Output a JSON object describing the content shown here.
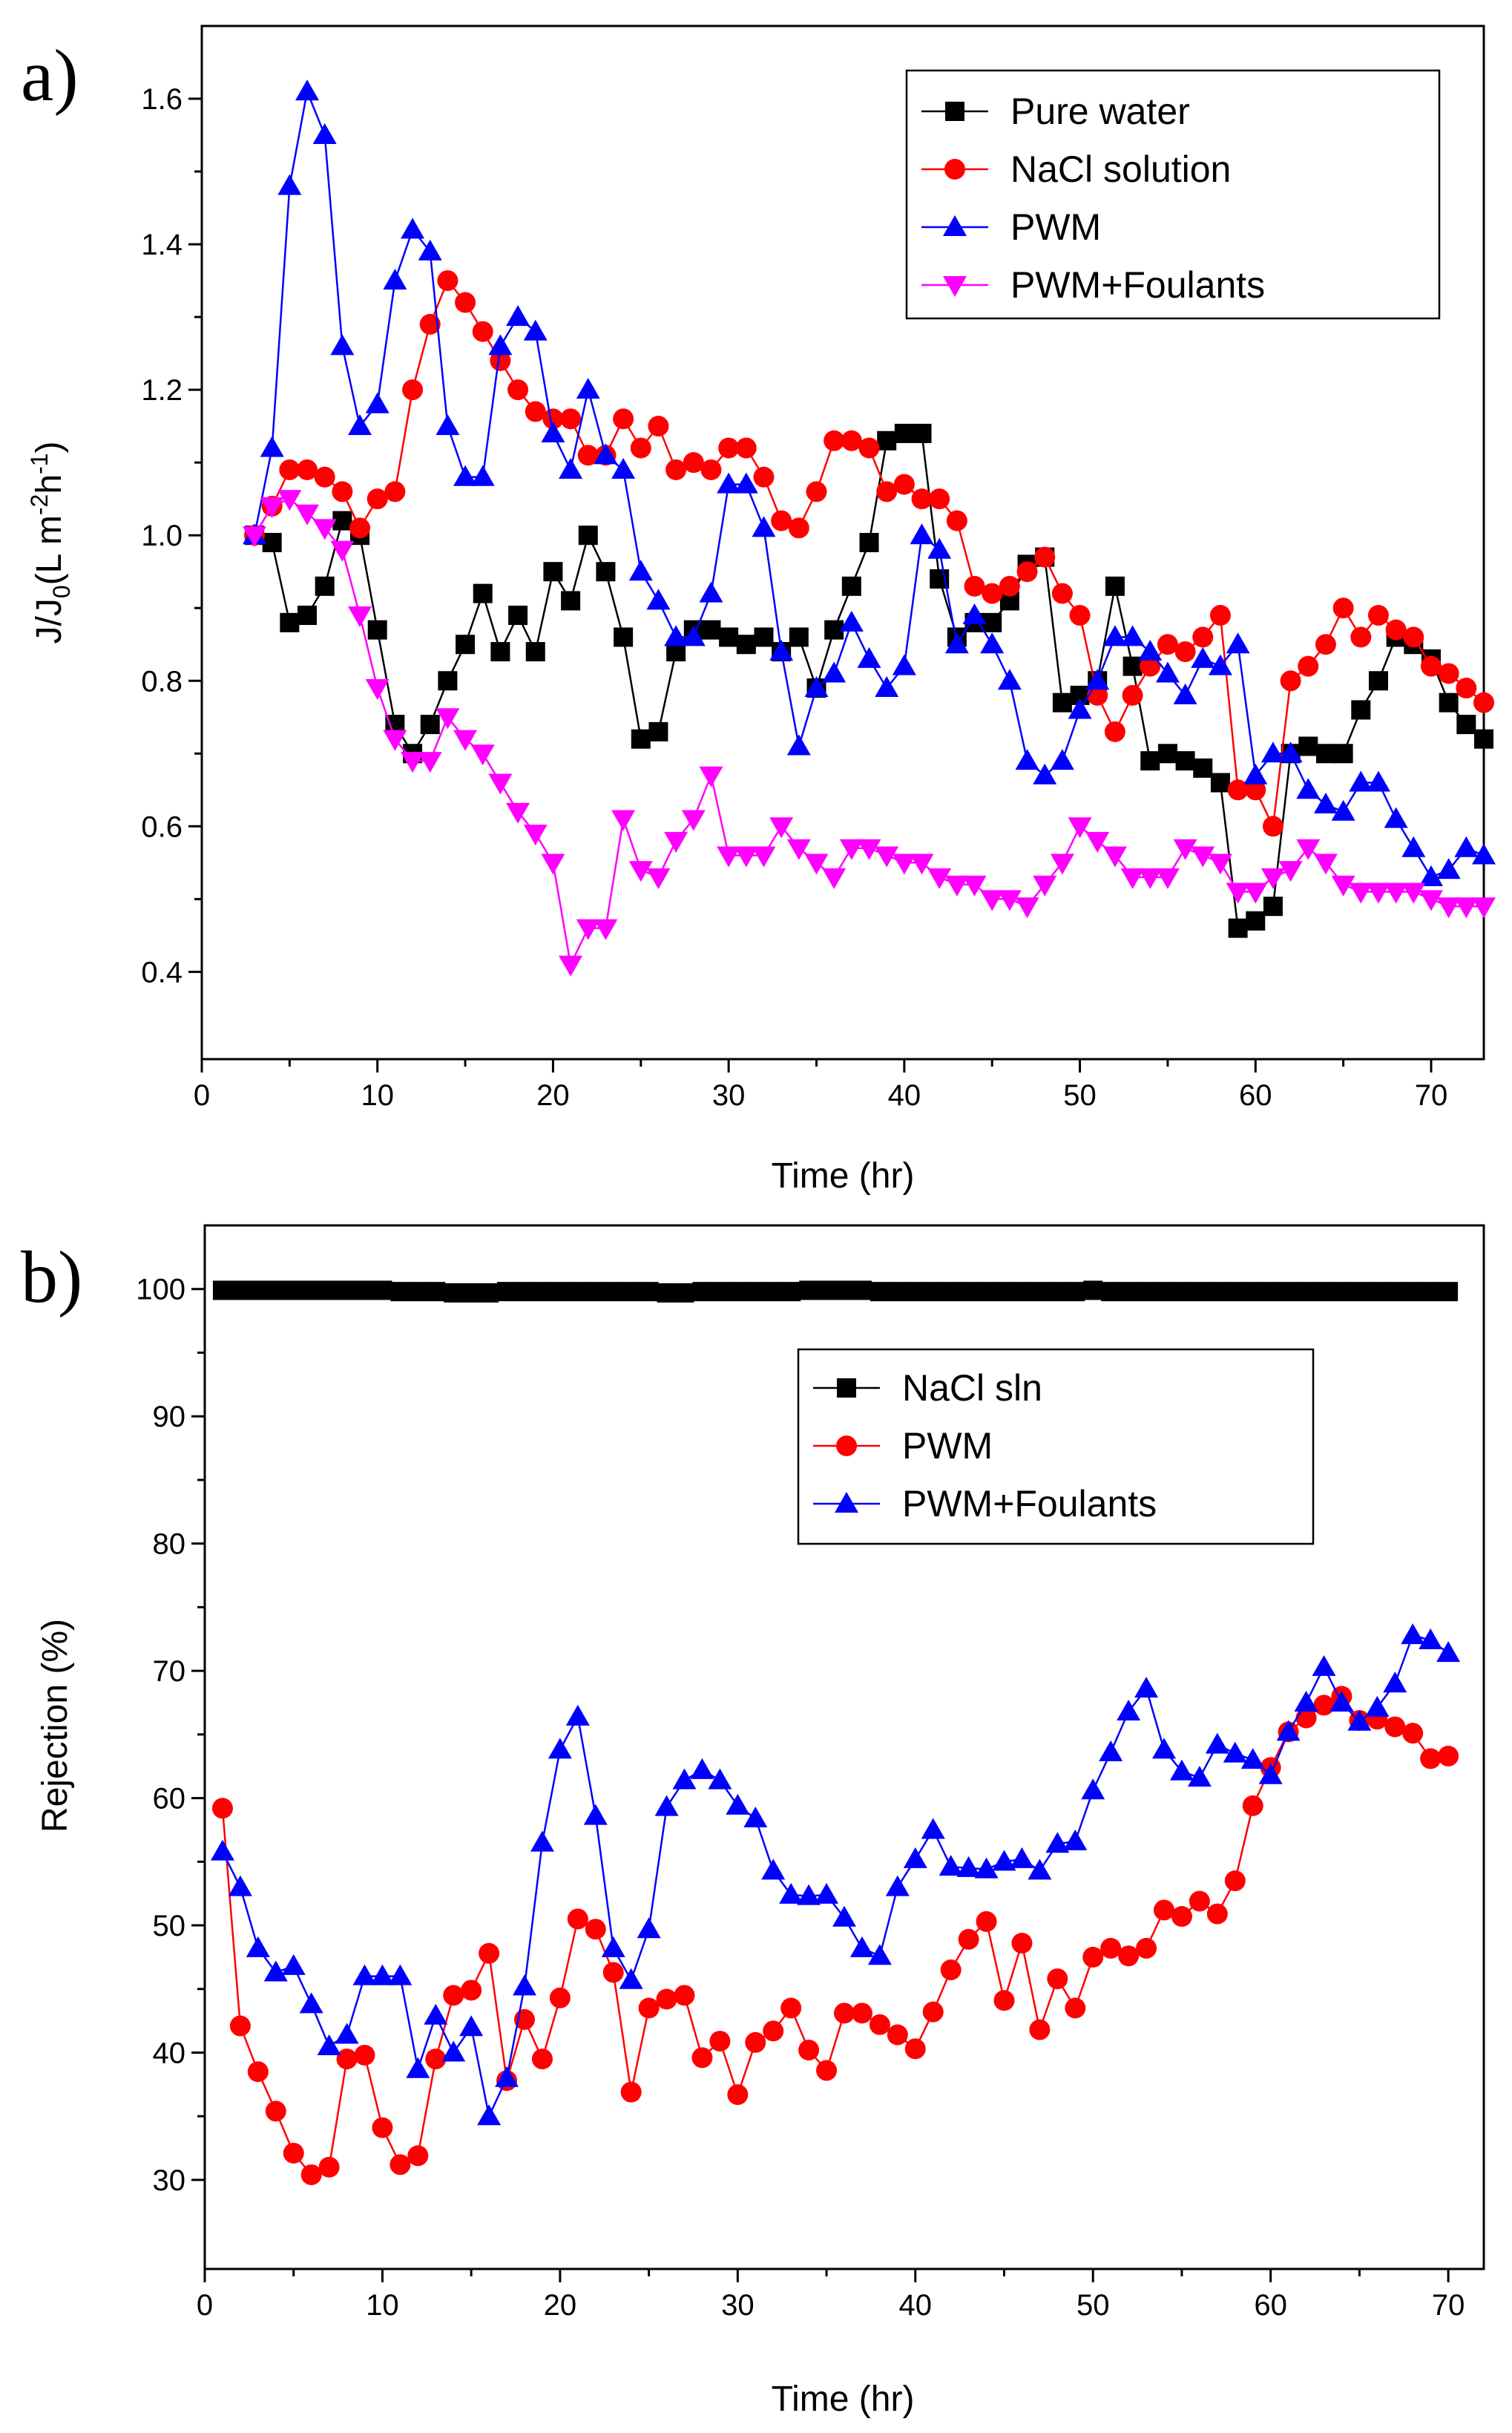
{
  "chart_data": [
    {
      "panel": "a)",
      "type": "line",
      "xlabel": "Time (hr)",
      "ylabel": {
        "main": "J/J",
        "sub": "0",
        "unit_open": "(L m",
        "exp1": "-2",
        "unit_mid": "h",
        "exp2": "-1",
        "unit_close": ")"
      },
      "xlim": [
        0,
        73
      ],
      "ylim": [
        0.28,
        1.7
      ],
      "xticks": [
        0,
        10,
        20,
        30,
        40,
        50,
        60,
        70
      ],
      "yticks": [
        0.4,
        0.6,
        0.8,
        1.0,
        1.2,
        1.4,
        1.6
      ],
      "ytick_labels": [
        "0.4",
        "0.6",
        "0.8",
        "1.0",
        "1.2",
        "1.4",
        "1.6"
      ],
      "legend_position": "top-right",
      "series": [
        {
          "name": "Pure water",
          "color": "#000000",
          "marker": "square",
          "x": [
            3,
            4,
            5,
            6,
            7,
            8,
            9,
            10,
            11,
            12,
            13,
            14,
            15,
            16,
            17,
            18,
            19,
            20,
            21,
            22,
            23,
            24,
            25,
            26,
            27,
            28,
            29,
            30,
            31,
            32,
            33,
            34,
            35,
            36,
            37,
            38,
            39,
            40,
            41,
            42,
            43,
            44,
            45,
            46,
            47,
            48,
            49,
            50,
            51,
            52,
            53,
            54,
            55,
            56,
            57,
            58,
            59,
            60,
            61,
            62,
            63,
            64,
            65,
            66,
            67,
            68,
            69,
            70,
            71,
            72,
            73
          ],
          "values": [
            1.0,
            0.99,
            0.88,
            0.89,
            0.93,
            1.02,
            1.0,
            0.87,
            0.74,
            0.7,
            0.74,
            0.8,
            0.85,
            0.92,
            0.84,
            0.89,
            0.84,
            0.95,
            0.91,
            1.0,
            0.95,
            0.86,
            0.72,
            0.73,
            0.84,
            0.87,
            0.87,
            0.86,
            0.85,
            0.86,
            0.84,
            0.86,
            0.79,
            0.87,
            0.93,
            0.99,
            1.13,
            1.14,
            1.14,
            0.94,
            0.86,
            0.88,
            0.88,
            0.91,
            0.96,
            0.97,
            0.77,
            0.78,
            0.8,
            0.93,
            0.82,
            0.69,
            0.7,
            0.69,
            0.68,
            0.66,
            0.46,
            0.47,
            0.49,
            0.7,
            0.71,
            0.7,
            0.7,
            0.76,
            0.8,
            0.86,
            0.85,
            0.83,
            0.77,
            0.74,
            0.72
          ]
        },
        {
          "name": "NaCl solution",
          "color": "#ff0000",
          "marker": "circle",
          "x": [
            3,
            4,
            5,
            6,
            7,
            8,
            9,
            10,
            11,
            12,
            13,
            14,
            15,
            16,
            17,
            18,
            19,
            20,
            21,
            22,
            23,
            24,
            25,
            26,
            27,
            28,
            29,
            30,
            31,
            32,
            33,
            34,
            35,
            36,
            37,
            38,
            39,
            40,
            41,
            42,
            43,
            44,
            45,
            46,
            47,
            48,
            49,
            50,
            51,
            52,
            53,
            54,
            55,
            56,
            57,
            58,
            59,
            60,
            61,
            62,
            63,
            64,
            65,
            66,
            67,
            68,
            69,
            70,
            71,
            72,
            73
          ],
          "values": [
            1.0,
            1.04,
            1.09,
            1.09,
            1.08,
            1.06,
            1.01,
            1.05,
            1.06,
            1.2,
            1.29,
            1.35,
            1.32,
            1.28,
            1.24,
            1.2,
            1.17,
            1.16,
            1.16,
            1.11,
            1.11,
            1.16,
            1.12,
            1.15,
            1.09,
            1.1,
            1.09,
            1.12,
            1.12,
            1.08,
            1.02,
            1.01,
            1.06,
            1.13,
            1.13,
            1.12,
            1.06,
            1.07,
            1.05,
            1.05,
            1.02,
            0.93,
            0.92,
            0.93,
            0.95,
            0.97,
            0.92,
            0.89,
            0.78,
            0.73,
            0.78,
            0.82,
            0.85,
            0.84,
            0.86,
            0.89,
            0.65,
            0.65,
            0.6,
            0.8,
            0.82,
            0.85,
            0.9,
            0.86,
            0.89,
            0.87,
            0.86,
            0.82,
            0.81,
            0.79,
            0.77
          ]
        },
        {
          "name": "PWM",
          "color": "#0000ff",
          "marker": "triangle-up",
          "x": [
            3,
            4,
            5,
            6,
            7,
            8,
            9,
            10,
            11,
            12,
            13,
            14,
            15,
            16,
            17,
            18,
            19,
            20,
            21,
            22,
            23,
            24,
            25,
            26,
            27,
            28,
            29,
            30,
            31,
            32,
            33,
            34,
            35,
            36,
            37,
            38,
            39,
            40,
            41,
            42,
            43,
            44,
            45,
            46,
            47,
            48,
            49,
            50,
            51,
            52,
            53,
            54,
            55,
            56,
            57,
            58,
            59,
            60,
            61,
            62,
            63,
            64,
            65,
            66,
            67,
            68,
            69,
            70,
            71,
            72,
            73
          ],
          "values": [
            1.0,
            1.12,
            1.48,
            1.61,
            1.55,
            1.26,
            1.15,
            1.18,
            1.35,
            1.42,
            1.39,
            1.15,
            1.08,
            1.08,
            1.26,
            1.3,
            1.28,
            1.14,
            1.09,
            1.2,
            1.11,
            1.09,
            0.95,
            0.91,
            0.86,
            0.86,
            0.92,
            1.07,
            1.07,
            1.01,
            0.84,
            0.71,
            0.79,
            0.81,
            0.88,
            0.83,
            0.79,
            0.82,
            1.0,
            0.98,
            0.85,
            0.89,
            0.85,
            0.8,
            0.69,
            0.67,
            0.69,
            0.76,
            0.8,
            0.86,
            0.86,
            0.84,
            0.81,
            0.78,
            0.83,
            0.82,
            0.85,
            0.67,
            0.7,
            0.7,
            0.65,
            0.63,
            0.62,
            0.66,
            0.66,
            0.61,
            0.57,
            0.53,
            0.54,
            0.57,
            0.56
          ]
        },
        {
          "name": "PWM+Foulants",
          "color": "#ff00ff",
          "marker": "triangle-down",
          "x": [
            3,
            4,
            5,
            6,
            7,
            8,
            9,
            10,
            11,
            12,
            13,
            14,
            15,
            16,
            17,
            18,
            19,
            20,
            21,
            22,
            23,
            24,
            25,
            26,
            27,
            28,
            29,
            30,
            31,
            32,
            33,
            34,
            35,
            36,
            37,
            38,
            39,
            40,
            41,
            42,
            43,
            44,
            45,
            46,
            47,
            48,
            49,
            50,
            51,
            52,
            53,
            54,
            55,
            56,
            57,
            58,
            59,
            60,
            61,
            62,
            63,
            64,
            65,
            66,
            67,
            68,
            69,
            70,
            71,
            72,
            73
          ],
          "values": [
            1.0,
            1.04,
            1.05,
            1.03,
            1.01,
            0.98,
            0.89,
            0.79,
            0.72,
            0.69,
            0.69,
            0.75,
            0.72,
            0.7,
            0.66,
            0.62,
            0.59,
            0.55,
            0.41,
            0.46,
            0.46,
            0.61,
            0.54,
            0.53,
            0.58,
            0.61,
            0.67,
            0.56,
            0.56,
            0.56,
            0.6,
            0.57,
            0.55,
            0.53,
            0.57,
            0.57,
            0.56,
            0.55,
            0.55,
            0.53,
            0.52,
            0.52,
            0.5,
            0.5,
            0.49,
            0.52,
            0.55,
            0.6,
            0.58,
            0.56,
            0.53,
            0.53,
            0.53,
            0.57,
            0.56,
            0.55,
            0.51,
            0.51,
            0.53,
            0.54,
            0.57,
            0.55,
            0.52,
            0.51,
            0.51,
            0.51,
            0.51,
            0.5,
            0.49,
            0.49,
            0.49
          ]
        }
      ]
    },
    {
      "panel": "b)",
      "type": "line",
      "xlabel": "Time (hr)",
      "ylabel": "Rejection (%)",
      "xlim": [
        0,
        72
      ],
      "ylim": [
        23,
        105
      ],
      "xticks": [
        0,
        10,
        20,
        30,
        40,
        50,
        60,
        70
      ],
      "yticks": [
        30,
        40,
        50,
        60,
        70,
        80,
        90,
        100
      ],
      "ytick_labels": [
        "30",
        "40",
        "50",
        "60",
        "70",
        "80",
        "90",
        "100"
      ],
      "legend_position": "upper-right",
      "series": [
        {
          "name": "NaCl sln",
          "color": "#000000",
          "marker": "square",
          "x": [
            1,
            2,
            3,
            4,
            5,
            6,
            7,
            8,
            9,
            10,
            11,
            12,
            13,
            14,
            15,
            16,
            17,
            18,
            19,
            20,
            21,
            22,
            23,
            24,
            25,
            26,
            27,
            28,
            29,
            30,
            31,
            32,
            33,
            34,
            35,
            36,
            37,
            38,
            39,
            40,
            41,
            42,
            43,
            44,
            45,
            46,
            47,
            48,
            49,
            50,
            51,
            52,
            53,
            54,
            55,
            56,
            57,
            58,
            59,
            60,
            61,
            62,
            63,
            64,
            65,
            66,
            67,
            68,
            69,
            70
          ],
          "values": [
            99.9,
            99.9,
            99.9,
            99.9,
            99.9,
            99.9,
            99.9,
            99.9,
            99.9,
            99.9,
            99.8,
            99.8,
            99.8,
            99.7,
            99.7,
            99.7,
            99.8,
            99.8,
            99.8,
            99.8,
            99.8,
            99.8,
            99.8,
            99.8,
            99.8,
            99.7,
            99.7,
            99.8,
            99.8,
            99.8,
            99.8,
            99.8,
            99.8,
            99.9,
            99.9,
            99.9,
            99.9,
            99.8,
            99.8,
            99.8,
            99.8,
            99.8,
            99.8,
            99.8,
            99.8,
            99.8,
            99.8,
            99.8,
            99.8,
            99.9,
            99.8,
            99.8,
            99.8,
            99.8,
            99.8,
            99.8,
            99.8,
            99.8,
            99.8,
            99.8,
            99.8,
            99.8,
            99.8,
            99.8,
            99.8,
            99.8,
            99.8,
            99.8,
            99.8,
            99.8
          ]
        },
        {
          "name": "PWM",
          "color": "#ff0000",
          "marker": "circle",
          "x": [
            1,
            2,
            3,
            4,
            5,
            6,
            7,
            8,
            9,
            10,
            11,
            12,
            13,
            14,
            15,
            16,
            17,
            18,
            19,
            20,
            21,
            22,
            23,
            24,
            25,
            26,
            27,
            28,
            29,
            30,
            31,
            32,
            33,
            34,
            35,
            36,
            37,
            38,
            39,
            40,
            41,
            42,
            43,
            44,
            45,
            46,
            47,
            48,
            49,
            50,
            51,
            52,
            53,
            54,
            55,
            56,
            57,
            58,
            59,
            60,
            61,
            62,
            63,
            64,
            65,
            66,
            67,
            68,
            69,
            70
          ],
          "values": [
            59.2,
            42.1,
            38.5,
            35.4,
            32.1,
            30.4,
            31.0,
            39.5,
            39.8,
            34.1,
            31.2,
            31.9,
            39.5,
            44.5,
            44.9,
            47.8,
            37.8,
            42.6,
            39.5,
            44.3,
            50.5,
            49.7,
            46.3,
            36.9,
            43.5,
            44.2,
            44.5,
            39.6,
            40.9,
            36.7,
            40.8,
            41.7,
            43.5,
            40.2,
            38.6,
            43.1,
            43.1,
            42.2,
            41.4,
            40.3,
            43.2,
            46.5,
            48.9,
            50.3,
            44.1,
            48.6,
            41.8,
            45.8,
            43.5,
            47.5,
            48.2,
            47.6,
            48.2,
            51.2,
            50.7,
            51.9,
            50.9,
            53.5,
            59.4,
            62.4,
            65.2,
            66.3,
            67.3,
            68.0,
            66.1,
            66.2,
            65.6,
            65.1,
            63.1,
            63.3
          ]
        },
        {
          "name": "PWM+Foulants",
          "color": "#0000ff",
          "marker": "triangle-up",
          "x": [
            1,
            2,
            3,
            4,
            5,
            6,
            7,
            8,
            9,
            10,
            11,
            12,
            13,
            14,
            15,
            16,
            17,
            18,
            19,
            20,
            21,
            22,
            23,
            24,
            25,
            26,
            27,
            28,
            29,
            30,
            31,
            32,
            33,
            34,
            35,
            36,
            37,
            38,
            39,
            40,
            41,
            42,
            43,
            44,
            45,
            46,
            47,
            48,
            49,
            50,
            51,
            52,
            53,
            54,
            55,
            56,
            57,
            58,
            59,
            60,
            61,
            62,
            63,
            64,
            65,
            66,
            67,
            68,
            69,
            70
          ],
          "values": [
            55.8,
            53.0,
            48.2,
            46.3,
            46.8,
            43.8,
            40.5,
            41.4,
            46.0,
            46.0,
            46.0,
            38.7,
            42.9,
            40.0,
            42.0,
            35.0,
            38.0,
            45.2,
            56.5,
            63.8,
            66.4,
            58.6,
            48.2,
            45.7,
            49.7,
            59.3,
            61.4,
            62.2,
            61.4,
            59.4,
            58.4,
            54.3,
            52.4,
            52.3,
            52.4,
            50.6,
            48.2,
            47.6,
            53.0,
            55.2,
            57.5,
            54.6,
            54.5,
            54.4,
            55.0,
            55.2,
            54.3,
            56.4,
            56.6,
            60.6,
            63.6,
            66.8,
            68.6,
            63.8,
            62.1,
            61.6,
            64.2,
            63.5,
            63.0,
            61.8,
            65.2,
            67.5,
            70.3,
            67.5,
            66.0,
            67.1,
            69.0,
            72.8,
            72.4,
            71.4
          ]
        }
      ]
    }
  ]
}
